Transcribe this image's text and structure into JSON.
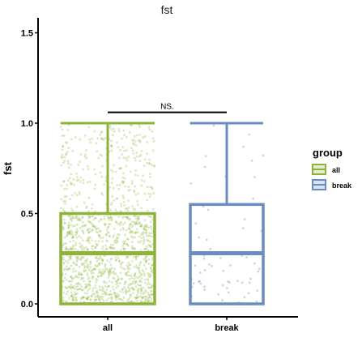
{
  "chart_data": {
    "type": "boxplot",
    "title": "fst",
    "xlabel": "",
    "ylabel": "fst",
    "ylim": [
      0,
      1.5
    ],
    "y_ticks": [
      "0.0",
      "0.5",
      "1.0",
      "1.5"
    ],
    "categories": [
      "all",
      "break"
    ],
    "series": [
      {
        "name": "all",
        "color": "#8db33a",
        "stats": {
          "min": 0.0,
          "q1": 0.0,
          "median": 0.28,
          "q3": 0.5,
          "max": 1.0
        },
        "points_density": "high"
      },
      {
        "name": "break",
        "color": "#6a8cc2",
        "stats": {
          "min": 0.0,
          "q1": 0.0,
          "median": 0.28,
          "q3": 0.55,
          "max": 1.0
        },
        "points_density": "low"
      }
    ],
    "legend": {
      "title": "group",
      "entries": [
        "all",
        "break"
      ],
      "position": "right"
    },
    "annotation": {
      "text": "NS.",
      "between": [
        "all",
        "break"
      ],
      "y": 1.06
    },
    "grid": false
  }
}
